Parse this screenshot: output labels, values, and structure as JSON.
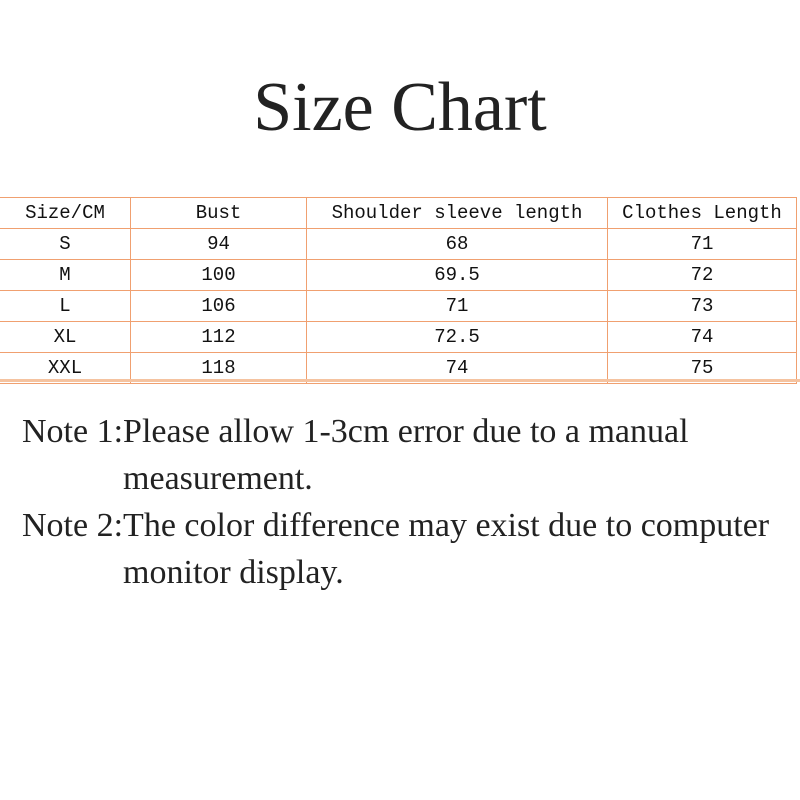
{
  "title": "Size Chart",
  "table": {
    "headers": [
      "Size/CM",
      "Bust",
      "Shoulder sleeve length",
      "Clothes Length"
    ],
    "rows": [
      [
        "S",
        "94",
        "68",
        "71"
      ],
      [
        "M",
        "100",
        "69.5",
        "72"
      ],
      [
        "L",
        "106",
        "71",
        "73"
      ],
      [
        "XL",
        "112",
        "72.5",
        "74"
      ],
      [
        "XXL",
        "118",
        "74",
        "75"
      ]
    ]
  },
  "notes": [
    {
      "label": "Note 1:",
      "text": "Please allow 1-3cm error due to a manual measurement."
    },
    {
      "label": "Note 2:",
      "text": "The color difference may exist due to computer monitor display."
    }
  ],
  "colors": {
    "border": "#f0a070",
    "text": "#222222"
  }
}
